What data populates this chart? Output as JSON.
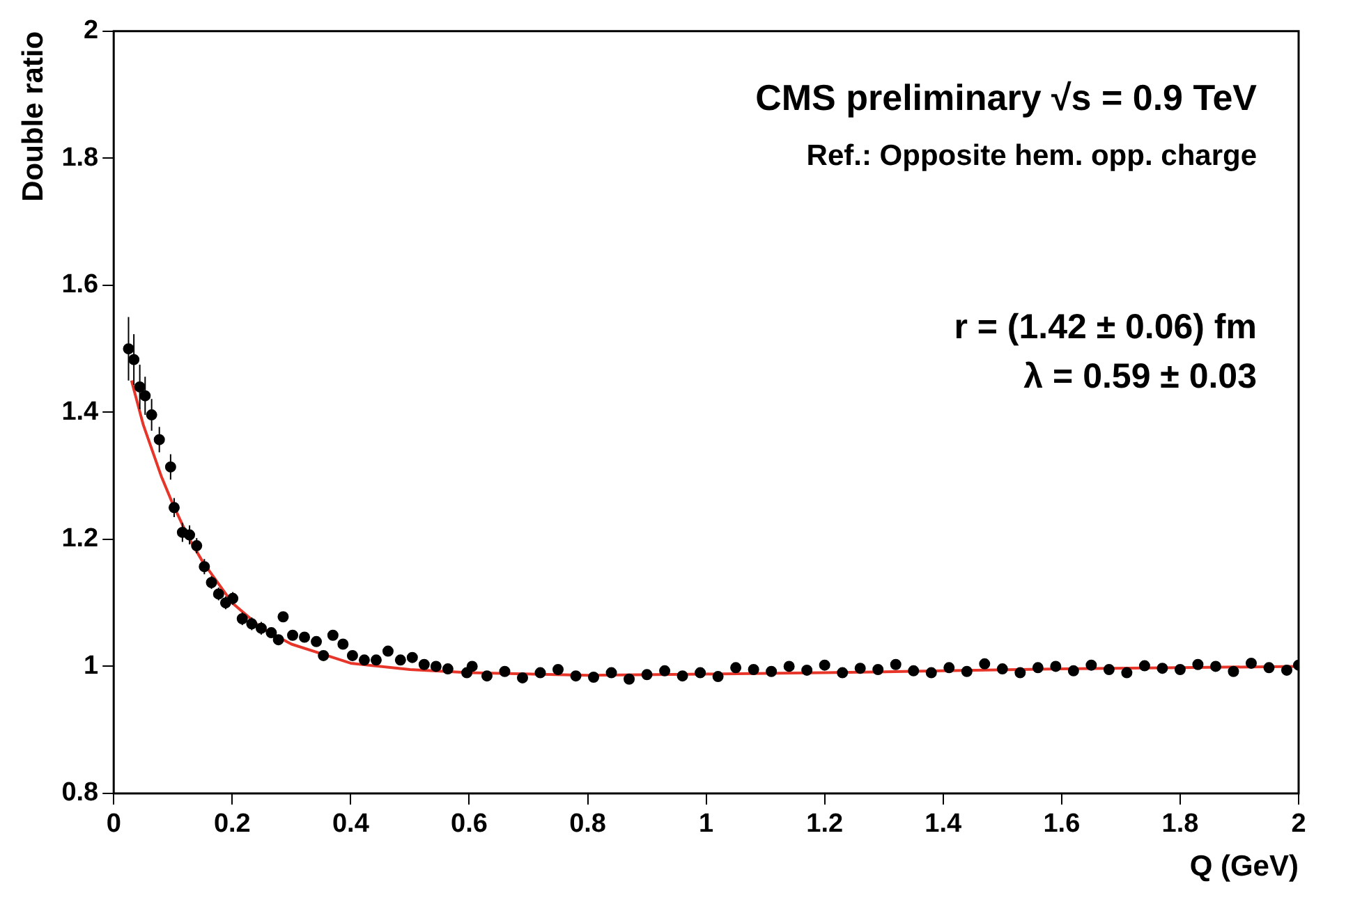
{
  "chart_data": {
    "type": "scatter",
    "xlabel": "Q (GeV)",
    "ylabel": "Double ratio",
    "annotations": [
      "CMS preliminary √s = 0.9 TeV",
      "Ref.: Opposite hem. opp. charge",
      "r = (1.42 ± 0.06) fm",
      "λ = 0.59 ± 0.03"
    ],
    "xlim": [
      0,
      2
    ],
    "xticks": [
      0,
      0.2,
      0.4,
      0.6,
      0.8,
      1,
      1.2,
      1.4,
      1.6,
      1.8,
      2
    ],
    "ylim": [
      0.8,
      2
    ],
    "yticks": [
      0.8,
      1,
      1.2,
      1.4,
      1.6,
      1.8,
      2
    ],
    "grid": false,
    "legend": false,
    "series": [
      {
        "color": "#000000",
        "marker": "circle",
        "x": [
          0.025,
          0.034,
          0.044,
          0.053,
          0.064,
          0.077,
          0.096,
          0.102,
          0.116,
          0.128,
          0.14,
          0.153,
          0.165,
          0.177,
          0.189,
          0.201,
          0.217,
          0.233,
          0.249,
          0.266,
          0.278,
          0.286,
          0.302,
          0.322,
          0.342,
          0.354,
          0.37,
          0.387,
          0.403,
          0.423,
          0.443,
          0.463,
          0.484,
          0.504,
          0.524,
          0.544,
          0.564,
          0.596,
          0.605,
          0.63,
          0.66,
          0.69,
          0.72,
          0.75,
          0.78,
          0.81,
          0.84,
          0.87,
          0.9,
          0.93,
          0.96,
          0.99,
          1.02,
          1.05,
          1.08,
          1.11,
          1.14,
          1.17,
          1.2,
          1.23,
          1.26,
          1.29,
          1.32,
          1.35,
          1.38,
          1.41,
          1.44,
          1.47,
          1.5,
          1.53,
          1.56,
          1.59,
          1.62,
          1.65,
          1.68,
          1.71,
          1.74,
          1.77,
          1.8,
          1.83,
          1.86,
          1.89,
          1.92,
          1.95,
          1.98,
          2.0
        ],
        "values": [
          1.5,
          1.483,
          1.44,
          1.426,
          1.396,
          1.357,
          1.314,
          1.25,
          1.211,
          1.207,
          1.19,
          1.157,
          1.132,
          1.114,
          1.1,
          1.107,
          1.075,
          1.067,
          1.06,
          1.053,
          1.042,
          1.078,
          1.049,
          1.046,
          1.039,
          1.017,
          1.049,
          1.035,
          1.017,
          1.01,
          1.01,
          1.024,
          1.01,
          1.014,
          1.003,
          1.0,
          0.996,
          0.99,
          1.0,
          0.985,
          0.992,
          0.982,
          0.99,
          0.995,
          0.985,
          0.983,
          0.99,
          0.98,
          0.987,
          0.993,
          0.985,
          0.99,
          0.984,
          0.998,
          0.995,
          0.992,
          1.0,
          0.994,
          1.002,
          0.99,
          0.997,
          0.995,
          1.003,
          0.993,
          0.99,
          0.998,
          0.992,
          1.004,
          0.996,
          0.99,
          0.998,
          1.0,
          0.993,
          1.002,
          0.995,
          0.99,
          1.001,
          0.997,
          0.995,
          1.003,
          1.0,
          0.992,
          1.005,
          0.998,
          0.994,
          1.002
        ],
        "errors": [
          0.05,
          0.04,
          0.035,
          0.03,
          0.025,
          0.02,
          0.02,
          0.015,
          0.015,
          0.015,
          0.012,
          0.012,
          0.01,
          0.01,
          0.01,
          0.01,
          0.01,
          0.01,
          0.01,
          null,
          null,
          null,
          null,
          null,
          null,
          null,
          null,
          null,
          null,
          null,
          null,
          null,
          null,
          null,
          null,
          null,
          null,
          null,
          null,
          null,
          null,
          null,
          null,
          null,
          null,
          null,
          null,
          null,
          null,
          null,
          null,
          null,
          null,
          null,
          null,
          null,
          null,
          null,
          null,
          null,
          null,
          null,
          null,
          null,
          null,
          null,
          null,
          null,
          null,
          null,
          null,
          null,
          null,
          null,
          null,
          null,
          null,
          null,
          null,
          null,
          null,
          null,
          null,
          null,
          null,
          null
        ]
      },
      {
        "type": "line",
        "color": "#e8352a",
        "marker": "none",
        "x": [
          0.03,
          0.05,
          0.08,
          0.1,
          0.125,
          0.15,
          0.2,
          0.25,
          0.3,
          0.35,
          0.4,
          0.5,
          0.6,
          0.8,
          1.0,
          1.2,
          1.4,
          1.6,
          1.8,
          2.0
        ],
        "values": [
          1.45,
          1.38,
          1.3,
          1.255,
          1.205,
          1.165,
          1.1,
          1.06,
          1.035,
          1.02,
          1.005,
          0.995,
          0.99,
          0.986,
          0.988,
          0.99,
          0.993,
          0.996,
          0.998,
          1.0
        ]
      }
    ]
  }
}
